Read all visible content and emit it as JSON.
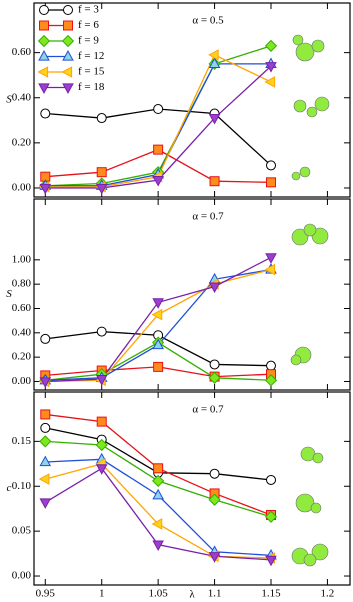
{
  "chart_data": [
    {
      "type": "line",
      "annotation": "α = 0.5",
      "ylabel": "S",
      "x": [
        0.95,
        1,
        1.05,
        1.1,
        1.15
      ],
      "xlim": [
        0.94,
        1.22
      ],
      "xticks": [
        0.95,
        1,
        1.05,
        1.1,
        1.15,
        1.2
      ],
      "xtick_labels": false,
      "ylim": [
        -0.04,
        0.82
      ],
      "yticks": [
        {
          "value": 0,
          "label": "0.00"
        },
        {
          "value": 0.2,
          "label": "0.20"
        },
        {
          "value": 0.4,
          "label": "0.40"
        },
        {
          "value": 0.6,
          "label": "0.60"
        }
      ],
      "legend": "upper left",
      "series": [
        {
          "name": "f = 3",
          "color": "#000000",
          "fill": "#ffffff",
          "marker": "circle",
          "values": [
            0.33,
            0.31,
            0.35,
            0.33,
            0.1
          ]
        },
        {
          "name": "f = 6",
          "color": "#e8101a",
          "fill": "#ff8c1a",
          "marker": "square",
          "values": [
            0.05,
            0.07,
            0.17,
            0.03,
            0.025
          ]
        },
        {
          "name": "f = 9",
          "color": "#33b000",
          "fill": "#7ee81e",
          "marker": "diamond",
          "values": [
            0.01,
            0.02,
            0.07,
            0.55,
            0.63
          ]
        },
        {
          "name": "f = 12",
          "color": "#1f4fd8",
          "fill": "#8fd3e8",
          "marker": "triangle-up",
          "values": [
            0.01,
            0.01,
            0.06,
            0.55,
            0.55
          ]
        },
        {
          "name": "f = 15",
          "color": "#ffa500",
          "fill": "#ffd21a",
          "marker": "triangle-left",
          "values": [
            0.005,
            0.005,
            0.05,
            0.59,
            0.47
          ]
        },
        {
          "name": "f = 18",
          "color": "#7a1fa8",
          "fill": "#9a3fd0",
          "marker": "triangle-down",
          "values": [
            0,
            0,
            0.035,
            0.31,
            0.54
          ]
        }
      ]
    },
    {
      "type": "line",
      "annotation": "α = 0.7",
      "ylabel": "S",
      "x": [
        0.95,
        1,
        1.05,
        1.1,
        1.15
      ],
      "xlim": [
        0.94,
        1.22
      ],
      "xticks": [
        0.95,
        1,
        1.05,
        1.1,
        1.15,
        1.2
      ],
      "xtick_labels": false,
      "ylim": [
        -0.07,
        1.5
      ],
      "yticks": [
        {
          "value": 0,
          "label": "0.00"
        },
        {
          "value": 0.2,
          "label": "0.20"
        },
        {
          "value": 0.4,
          "label": "0.40"
        },
        {
          "value": 0.6,
          "label": "0.60"
        },
        {
          "value": 0.8,
          "label": "0.80"
        },
        {
          "value": 1,
          "label": "1.00"
        }
      ],
      "series": [
        {
          "color": "#000000",
          "fill": "#ffffff",
          "marker": "circle",
          "values": [
            0.35,
            0.41,
            0.38,
            0.14,
            0.13
          ]
        },
        {
          "color": "#e8101a",
          "fill": "#ff8c1a",
          "marker": "square",
          "values": [
            0.05,
            0.09,
            0.12,
            0.04,
            0.06
          ]
        },
        {
          "color": "#33b000",
          "fill": "#7ee81e",
          "marker": "diamond",
          "values": [
            0.01,
            0.06,
            0.32,
            0.03,
            0.01
          ]
        },
        {
          "color": "#1f4fd8",
          "fill": "#8fd3e8",
          "marker": "triangle-up",
          "values": [
            0.01,
            0.03,
            0.3,
            0.84,
            0.92
          ]
        },
        {
          "color": "#ffa500",
          "fill": "#ffd21a",
          "marker": "triangle-left",
          "values": [
            0,
            0.01,
            0.55,
            0.8,
            0.92
          ]
        },
        {
          "color": "#7a1fa8",
          "fill": "#9a3fd0",
          "marker": "triangle-down",
          "values": [
            0,
            0.02,
            0.65,
            0.78,
            1.02
          ]
        }
      ]
    },
    {
      "type": "line",
      "annotation": "α = 0.7",
      "ylabel": "c",
      "xlabel": "λ",
      "x": [
        0.95,
        1,
        1.05,
        1.1,
        1.15
      ],
      "xlim": [
        0.94,
        1.22
      ],
      "xticks": [
        0.95,
        1,
        1.05,
        1.1,
        1.15,
        1.2
      ],
      "xtick_labels": true,
      "ylim": [
        -0.01,
        0.205
      ],
      "yticks": [
        {
          "value": 0,
          "label": "0.00"
        },
        {
          "value": 0.05,
          "label": "0.05"
        },
        {
          "value": 0.1,
          "label": "0.10"
        },
        {
          "value": 0.15,
          "label": "0.15"
        }
      ],
      "series": [
        {
          "color": "#000000",
          "fill": "#ffffff",
          "marker": "circle",
          "values": [
            0.165,
            0.152,
            0.115,
            0.114,
            0.107
          ]
        },
        {
          "color": "#e8101a",
          "fill": "#ff8c1a",
          "marker": "square",
          "values": [
            0.18,
            0.172,
            0.12,
            0.092,
            0.068
          ]
        },
        {
          "color": "#33b000",
          "fill": "#7ee81e",
          "marker": "diamond",
          "values": [
            0.15,
            0.146,
            0.106,
            0.085,
            0.066
          ]
        },
        {
          "color": "#1f4fd8",
          "fill": "#8fd3e8",
          "marker": "triangle-up",
          "values": [
            0.127,
            0.13,
            0.09,
            0.027,
            0.023
          ]
        },
        {
          "color": "#ffa500",
          "fill": "#ffd21a",
          "marker": "triangle-left",
          "values": [
            0.108,
            0.125,
            0.058,
            0.022,
            0.02
          ]
        },
        {
          "color": "#7a1fa8",
          "fill": "#9a3fd0",
          "marker": "triangle-down",
          "values": [
            0.082,
            0.12,
            0.035,
            0.022,
            0.018
          ]
        }
      ]
    }
  ]
}
